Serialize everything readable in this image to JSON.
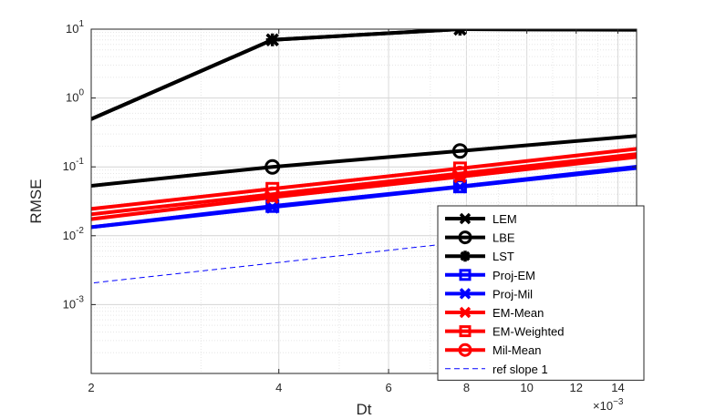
{
  "chart_data": {
    "type": "line",
    "title": "",
    "xlabel": "Dt",
    "ylabel": "RMSE",
    "x_scale": "log",
    "y_scale": "log",
    "xlim": [
      0.002,
      0.015
    ],
    "ylim": [
      0.0001,
      10
    ],
    "grid": true,
    "x_ticks": [
      {
        "value": 0.002,
        "label": "2"
      },
      {
        "value": 0.004,
        "label": "4"
      },
      {
        "value": 0.006,
        "label": "6"
      },
      {
        "value": 0.008,
        "label": "8"
      },
      {
        "value": 0.01,
        "label": "10"
      },
      {
        "value": 0.012,
        "label": "12"
      },
      {
        "value": 0.014,
        "label": "14"
      }
    ],
    "x_multiplier": {
      "base": "×10",
      "exp": "−3"
    },
    "y_ticks": [
      {
        "value": 0.001,
        "base": "10",
        "exp": "-3"
      },
      {
        "value": 0.01,
        "base": "10",
        "exp": "-2"
      },
      {
        "value": 0.1,
        "base": "10",
        "exp": "-1"
      },
      {
        "value": 1,
        "base": "10",
        "exp": "0"
      },
      {
        "value": 10,
        "base": "10",
        "exp": "1"
      }
    ],
    "x": [
      0.001953125,
      0.00390625,
      0.0078125,
      0.015625
    ],
    "series": [
      {
        "name": "LEM",
        "color": "#000000",
        "marker": "x",
        "values": [
          0.45,
          7.0,
          10.0,
          9.8
        ]
      },
      {
        "name": "LBE",
        "color": "#000000",
        "marker": "o",
        "values": [
          0.052,
          0.1,
          0.17,
          0.29
        ]
      },
      {
        "name": "LST",
        "color": "#000000",
        "marker": "*",
        "values": [
          0.45,
          7.0,
          10.0,
          9.8
        ]
      },
      {
        "name": "Proj-EM",
        "color": "#0000ff",
        "marker": "s",
        "values": [
          0.013,
          0.027,
          0.052,
          0.105
        ]
      },
      {
        "name": "Proj-Mil",
        "color": "#0000ff",
        "marker": "x",
        "values": [
          0.013,
          0.026,
          0.051,
          0.1
        ]
      },
      {
        "name": "EM-Mean",
        "color": "#ff0000",
        "marker": "x",
        "values": [
          0.017,
          0.036,
          0.072,
          0.145
        ]
      },
      {
        "name": "EM-Weighted",
        "color": "#ff0000",
        "marker": "s",
        "values": [
          0.024,
          0.048,
          0.095,
          0.19
        ]
      },
      {
        "name": "Mil-Mean",
        "color": "#ff0000",
        "marker": "o",
        "values": [
          0.02,
          0.04,
          0.08,
          0.16
        ]
      },
      {
        "name": "ref slope 1",
        "color": "#0000ff",
        "marker": "none",
        "dashed": true,
        "values": [
          0.002,
          0.004,
          0.008,
          0.016
        ]
      }
    ],
    "legend_position": "bottom-right"
  }
}
